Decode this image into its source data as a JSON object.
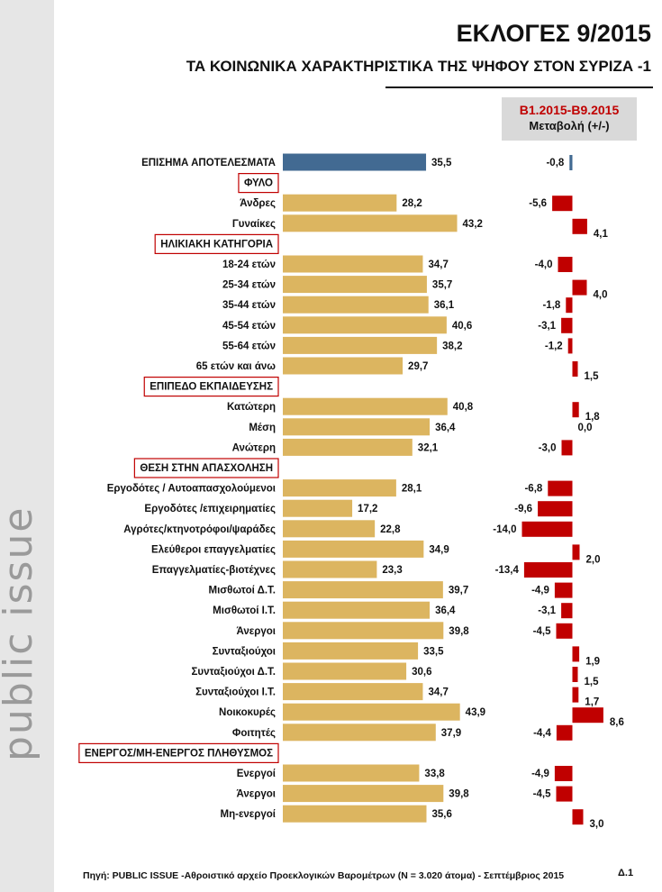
{
  "title": "ΕΚΛΟΓΕΣ 9/2015",
  "subtitle": "ΤΑ ΚΟΙΝΩΝΙΚΑ ΧΑΡΑΚΤΗΡΙΣΤΙΚΑ ΤΗΣ ΨΗΦΟΥ ΣΤΟΝ ΣΥΡΙΖΑ -1",
  "change_header": {
    "period": "Β1.2015-Β9.2015",
    "label": "Μεταβολή (+/-)"
  },
  "brand": "public issue",
  "footer": "Πηγή:  PUBLIC ISSUE -Αθροιστικό αρχείο Προεκλογικών Βαρομέτρων (Ν = 3.020 άτομα)  - Σεπτέμβριος 2015",
  "page_number": "Δ.1",
  "colors": {
    "total_bar": "#426a92",
    "bar": "#dcb560",
    "change_bar": "#c00000",
    "section_border": "#c00000"
  },
  "chart_data": {
    "type": "bar",
    "orientation": "horizontal",
    "title": "ΤΑ ΚΟΙΝΩΝΙΚΑ ΧΑΡΑΚΤΗΡΙΣΤΙΚΑ ΤΗΣ ΨΗΦΟΥ ΣΤΟΝ ΣΥΡΙΖΑ -1",
    "xlim": [
      0,
      45
    ],
    "change_xlim": [
      -14,
      9
    ],
    "rows": [
      {
        "label": "ΕΠΙΣΗΜΑ ΑΠΟΤΕΛΕΣΜΑΤΑ",
        "kind": "total",
        "value": 35.5,
        "value_label": "35,5",
        "change": -0.8,
        "change_label": "-0,8"
      },
      {
        "label": "ΦΥΛΟ",
        "kind": "section"
      },
      {
        "label": "Άνδρες",
        "kind": "item",
        "value": 28.2,
        "value_label": "28,2",
        "change": -5.6,
        "change_label": "-5,6"
      },
      {
        "label": "Γυναίκες",
        "kind": "item",
        "value": 43.2,
        "value_label": "43,2",
        "change": 4.1,
        "change_label": "4,1"
      },
      {
        "label": "ΗΛΙΚΙΑΚΗ ΚΑΤΗΓΟΡΙΑ",
        "kind": "section"
      },
      {
        "label": "18-24 ετών",
        "kind": "item",
        "value": 34.7,
        "value_label": "34,7",
        "change": -4.0,
        "change_label": "-4,0"
      },
      {
        "label": "25-34 ετών",
        "kind": "item",
        "value": 35.7,
        "value_label": "35,7",
        "change": 4.0,
        "change_label": "4,0"
      },
      {
        "label": "35-44 ετών",
        "kind": "item",
        "value": 36.1,
        "value_label": "36,1",
        "change": -1.8,
        "change_label": "-1,8"
      },
      {
        "label": "45-54 ετών",
        "kind": "item",
        "value": 40.6,
        "value_label": "40,6",
        "change": -3.1,
        "change_label": "-3,1"
      },
      {
        "label": "55-64 ετών",
        "kind": "item",
        "value": 38.2,
        "value_label": "38,2",
        "change": -1.2,
        "change_label": "-1,2"
      },
      {
        "label": "65 ετών και άνω",
        "kind": "item",
        "value": 29.7,
        "value_label": "29,7",
        "change": 1.5,
        "change_label": "1,5"
      },
      {
        "label": "ΕΠΙΠΕΔΟ ΕΚΠΑΙΔΕΥΣΗΣ",
        "kind": "section"
      },
      {
        "label": "Κατώτερη",
        "kind": "item",
        "value": 40.8,
        "value_label": "40,8",
        "change": 1.8,
        "change_label": "1,8"
      },
      {
        "label": "Μέση",
        "kind": "item",
        "value": 36.4,
        "value_label": "36,4",
        "change": 0.0,
        "change_label": "0,0"
      },
      {
        "label": "Ανώτερη",
        "kind": "item",
        "value": 32.1,
        "value_label": "32,1",
        "change": -3.0,
        "change_label": "-3,0"
      },
      {
        "label": "ΘΕΣΗ ΣΤΗΝ ΑΠΑΣΧΟΛΗΣΗ",
        "kind": "section"
      },
      {
        "label": "Εργοδότες / Αυτοαπασχολούμενοι",
        "kind": "item",
        "value": 28.1,
        "value_label": "28,1",
        "change": -6.8,
        "change_label": "-6,8"
      },
      {
        "label": "Εργοδότες /επιχειρηματίες",
        "kind": "item",
        "value": 17.2,
        "value_label": "17,2",
        "change": -9.6,
        "change_label": "-9,6"
      },
      {
        "label": "Αγρότες/κτηνοτρόφοι/ψαράδες",
        "kind": "item",
        "value": 22.8,
        "value_label": "22,8",
        "change": -14.0,
        "change_label": "-14,0"
      },
      {
        "label": "Ελεύθεροι επαγγελματίες",
        "kind": "item",
        "value": 34.9,
        "value_label": "34,9",
        "change": 2.0,
        "change_label": "2,0"
      },
      {
        "label": "Επαγγελματίες-βιοτέχνες",
        "kind": "item",
        "value": 23.3,
        "value_label": "23,3",
        "change": -13.4,
        "change_label": "-13,4"
      },
      {
        "label": "Μισθωτοί Δ.Τ.",
        "kind": "item",
        "value": 39.7,
        "value_label": "39,7",
        "change": -4.9,
        "change_label": "-4,9"
      },
      {
        "label": "Μισθωτοί Ι.Τ.",
        "kind": "item",
        "value": 36.4,
        "value_label": "36,4",
        "change": -3.1,
        "change_label": "-3,1"
      },
      {
        "label": "Άνεργοι",
        "kind": "item",
        "value": 39.8,
        "value_label": "39,8",
        "change": -4.5,
        "change_label": "-4,5"
      },
      {
        "label": "Συνταξιούχοι",
        "kind": "item",
        "value": 33.5,
        "value_label": "33,5",
        "change": 1.9,
        "change_label": "1,9"
      },
      {
        "label": "Συνταξιούχοι Δ.Τ.",
        "kind": "item",
        "value": 30.6,
        "value_label": "30,6",
        "change": 1.5,
        "change_label": "1,5"
      },
      {
        "label": "Συνταξιούχοι Ι.Τ.",
        "kind": "item",
        "value": 34.7,
        "value_label": "34,7",
        "change": 1.7,
        "change_label": "1,7"
      },
      {
        "label": "Νοικοκυρές",
        "kind": "item",
        "value": 43.9,
        "value_label": "43,9",
        "change": 8.6,
        "change_label": "8,6"
      },
      {
        "label": "Φοιτητές",
        "kind": "item",
        "value": 37.9,
        "value_label": "37,9",
        "change": -4.4,
        "change_label": "-4,4"
      },
      {
        "label": "ΕΝΕΡΓΟΣ/ΜΗ-ΕΝΕΡΓΟΣ ΠΛΗΘΥΣΜΟΣ",
        "kind": "section"
      },
      {
        "label": "Ενεργοί",
        "kind": "item",
        "value": 33.8,
        "value_label": "33,8",
        "change": -4.9,
        "change_label": "-4,9"
      },
      {
        "label": "Άνεργοι",
        "kind": "item",
        "value": 39.8,
        "value_label": "39,8",
        "change": -4.5,
        "change_label": "-4,5"
      },
      {
        "label": "Μη-ενεργοί",
        "kind": "item",
        "value": 35.6,
        "value_label": "35,6",
        "change": 3.0,
        "change_label": "3,0"
      }
    ]
  }
}
